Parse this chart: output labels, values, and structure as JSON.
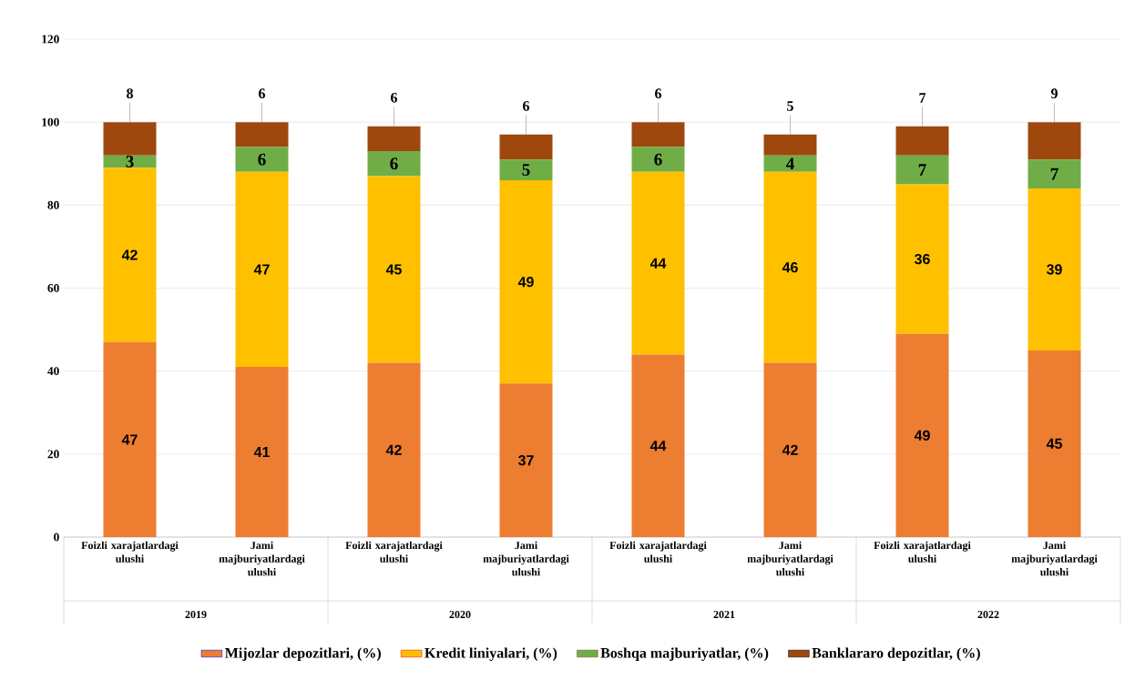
{
  "chart_data": {
    "type": "bar",
    "stacked": true,
    "categories": [
      "Foizli xarajatlardagi ulushi",
      "Jami majburiyatlardagi ulushi",
      "Foizli xarajatlardagi ulushi",
      "Jami majburiyatlardagi ulushi",
      "Foizli xarajatlardagi ulushi",
      "Jami majburiyatlardagi ulushi",
      "Foizli xarajatlardagi ulushi",
      "Jami majburiyatlardagi ulushi"
    ],
    "series": [
      {
        "name": "Mijozlar depozitlari, (%)",
        "color": "#ed7d31",
        "values": [
          47,
          41,
          42,
          37,
          44,
          42,
          49,
          45
        ]
      },
      {
        "name": "Kredit liniyalari, (%)",
        "color": "#ffc000",
        "values": [
          42,
          47,
          45,
          49,
          44,
          46,
          36,
          39
        ]
      },
      {
        "name": "Boshqa majburiyatlar, (%)",
        "color": "#70ad47",
        "values": [
          3,
          6,
          6,
          5,
          6,
          4,
          7,
          7
        ]
      },
      {
        "name": "Banklararo depozitlar, (%)",
        "color": "#9e480e",
        "values": [
          8,
          6,
          6,
          6,
          6,
          5,
          7,
          9
        ]
      }
    ],
    "annotations": [
      "2019",
      "2020",
      "2021",
      "2022"
    ],
    "ylim": [
      0,
      120
    ],
    "yticks": [
      0,
      20,
      40,
      60,
      80,
      100,
      120
    ],
    "grid": "y",
    "legend": "bottom",
    "data_labels": true
  }
}
